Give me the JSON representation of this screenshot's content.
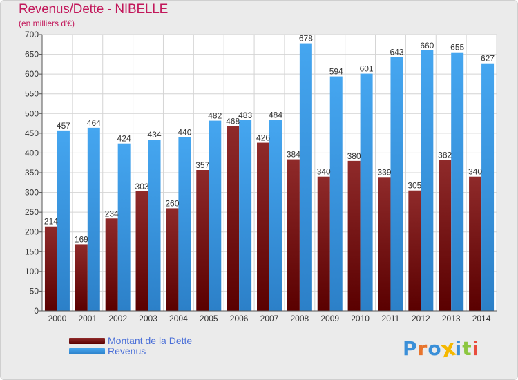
{
  "chart_data": {
    "type": "bar",
    "title": "Revenus/Dette - NIBELLE",
    "subtitle": "(en milliers d'€)",
    "categories": [
      "2000",
      "2001",
      "2002",
      "2003",
      "2004",
      "2005",
      "2006",
      "2007",
      "2008",
      "2009",
      "2010",
      "2011",
      "2012",
      "2013",
      "2014"
    ],
    "series": [
      {
        "name": "Montant de la Dette",
        "color": "#7a2020",
        "values": [
          214,
          169,
          234,
          303,
          260,
          357,
          468,
          426,
          384,
          340,
          380,
          339,
          305,
          382,
          340
        ]
      },
      {
        "name": "Revenus",
        "color": "#3b9ae6",
        "values": [
          457,
          464,
          424,
          434,
          440,
          482,
          483,
          484,
          678,
          594,
          601,
          643,
          660,
          655,
          627
        ]
      }
    ],
    "ylim": [
      0,
      700
    ],
    "yticks": [
      0,
      50,
      100,
      150,
      200,
      250,
      300,
      350,
      400,
      450,
      500,
      550,
      600,
      650,
      700
    ],
    "grid": true,
    "data_labels": true,
    "legend_position": "bottom-left"
  },
  "logo": {
    "text": "Proxiti",
    "colors": [
      "#3a8fd8",
      "#e8742c",
      "#3a8fd8",
      "#f5b800",
      "#3a8fd8",
      "#8cc63f",
      "#e84c3d"
    ]
  }
}
